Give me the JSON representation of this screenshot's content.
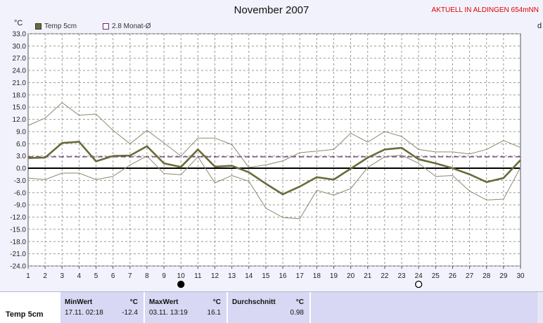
{
  "header": {
    "title": "November 2007",
    "location": "AKTUELL IN ALDINGEN 654mNN",
    "unit": "°C",
    "right_label": "d"
  },
  "legend": [
    {
      "label": "Temp 5cm",
      "color": "#6b6b3a"
    },
    {
      "label": "2.8 Monat-Ø",
      "color": "#6a2a6a"
    }
  ],
  "chart_data": {
    "type": "line",
    "title": "November 2007",
    "ylabel": "°C",
    "x": [
      1,
      2,
      3,
      4,
      5,
      6,
      7,
      8,
      9,
      10,
      11,
      12,
      13,
      14,
      15,
      16,
      17,
      18,
      19,
      20,
      21,
      22,
      23,
      24,
      25,
      26,
      27,
      28,
      29,
      30
    ],
    "y_ticks": [
      33.0,
      30.0,
      27.0,
      24.0,
      21.0,
      18.0,
      15.0,
      12.0,
      9.0,
      6.0,
      3.0,
      0.0,
      -3.0,
      -6.0,
      -9.0,
      -12.0,
      -15.0,
      -18.0,
      -21.0,
      -24.0
    ],
    "ylim": [
      -24,
      33
    ],
    "xlim": [
      1,
      30
    ],
    "grid": true,
    "series": [
      {
        "name": "Temp 5cm",
        "color": "#6b6b3a",
        "values": [
          2.5,
          2.6,
          6.2,
          6.5,
          1.7,
          3.0,
          3.1,
          5.4,
          1.2,
          0.3,
          4.6,
          0.4,
          0.6,
          -1.0,
          -3.8,
          -6.4,
          -4.5,
          -2.2,
          -2.8,
          -0.1,
          2.6,
          4.6,
          5.0,
          2.2,
          1.2,
          0.0,
          -1.5,
          -3.4,
          -2.4,
          2.0
        ]
      },
      {
        "color": "#8a8a70",
        "values": [
          10.5,
          12.3,
          16.1,
          13.0,
          13.3,
          9.3,
          6.0,
          9.3,
          6.2,
          3.0,
          7.4,
          7.4,
          5.8,
          0.2,
          0.8,
          1.8,
          3.8,
          4.2,
          4.6,
          8.6,
          6.4,
          9.0,
          7.8,
          4.6,
          4.0,
          4.0,
          3.5,
          4.6,
          6.8,
          5.1
        ]
      },
      {
        "color": "#8a8a70",
        "values": [
          -2.4,
          -2.8,
          -1.2,
          -1.2,
          -2.8,
          -2.0,
          0.8,
          3.0,
          -1.3,
          -1.6,
          2.8,
          -3.6,
          -1.8,
          -3.2,
          -9.8,
          -12.1,
          -12.4,
          -5.4,
          -6.6,
          -5.0,
          0.2,
          2.8,
          3.2,
          1.2,
          -2.0,
          -1.8,
          -5.6,
          -7.8,
          -7.6,
          0.2
        ]
      }
    ],
    "reference_line": {
      "name": "2.8 Monat-Ø",
      "value": 2.8,
      "color": "#6a2a6a"
    },
    "markers": [
      {
        "day": 10,
        "symbol": "full moon"
      },
      {
        "day": 24,
        "symbol": "new moon"
      }
    ]
  },
  "stats": {
    "label": "Temp 5cm",
    "min": {
      "title": "MinWert",
      "unit": "°C",
      "datetime": "17.11.  02:18",
      "value": "-12.4"
    },
    "max": {
      "title": "MaxWert",
      "unit": "°C",
      "datetime": "03.11.  13:19",
      "value": "16.1"
    },
    "avg": {
      "title": "Durchschnitt",
      "unit": "°C",
      "value": "0.98"
    }
  }
}
